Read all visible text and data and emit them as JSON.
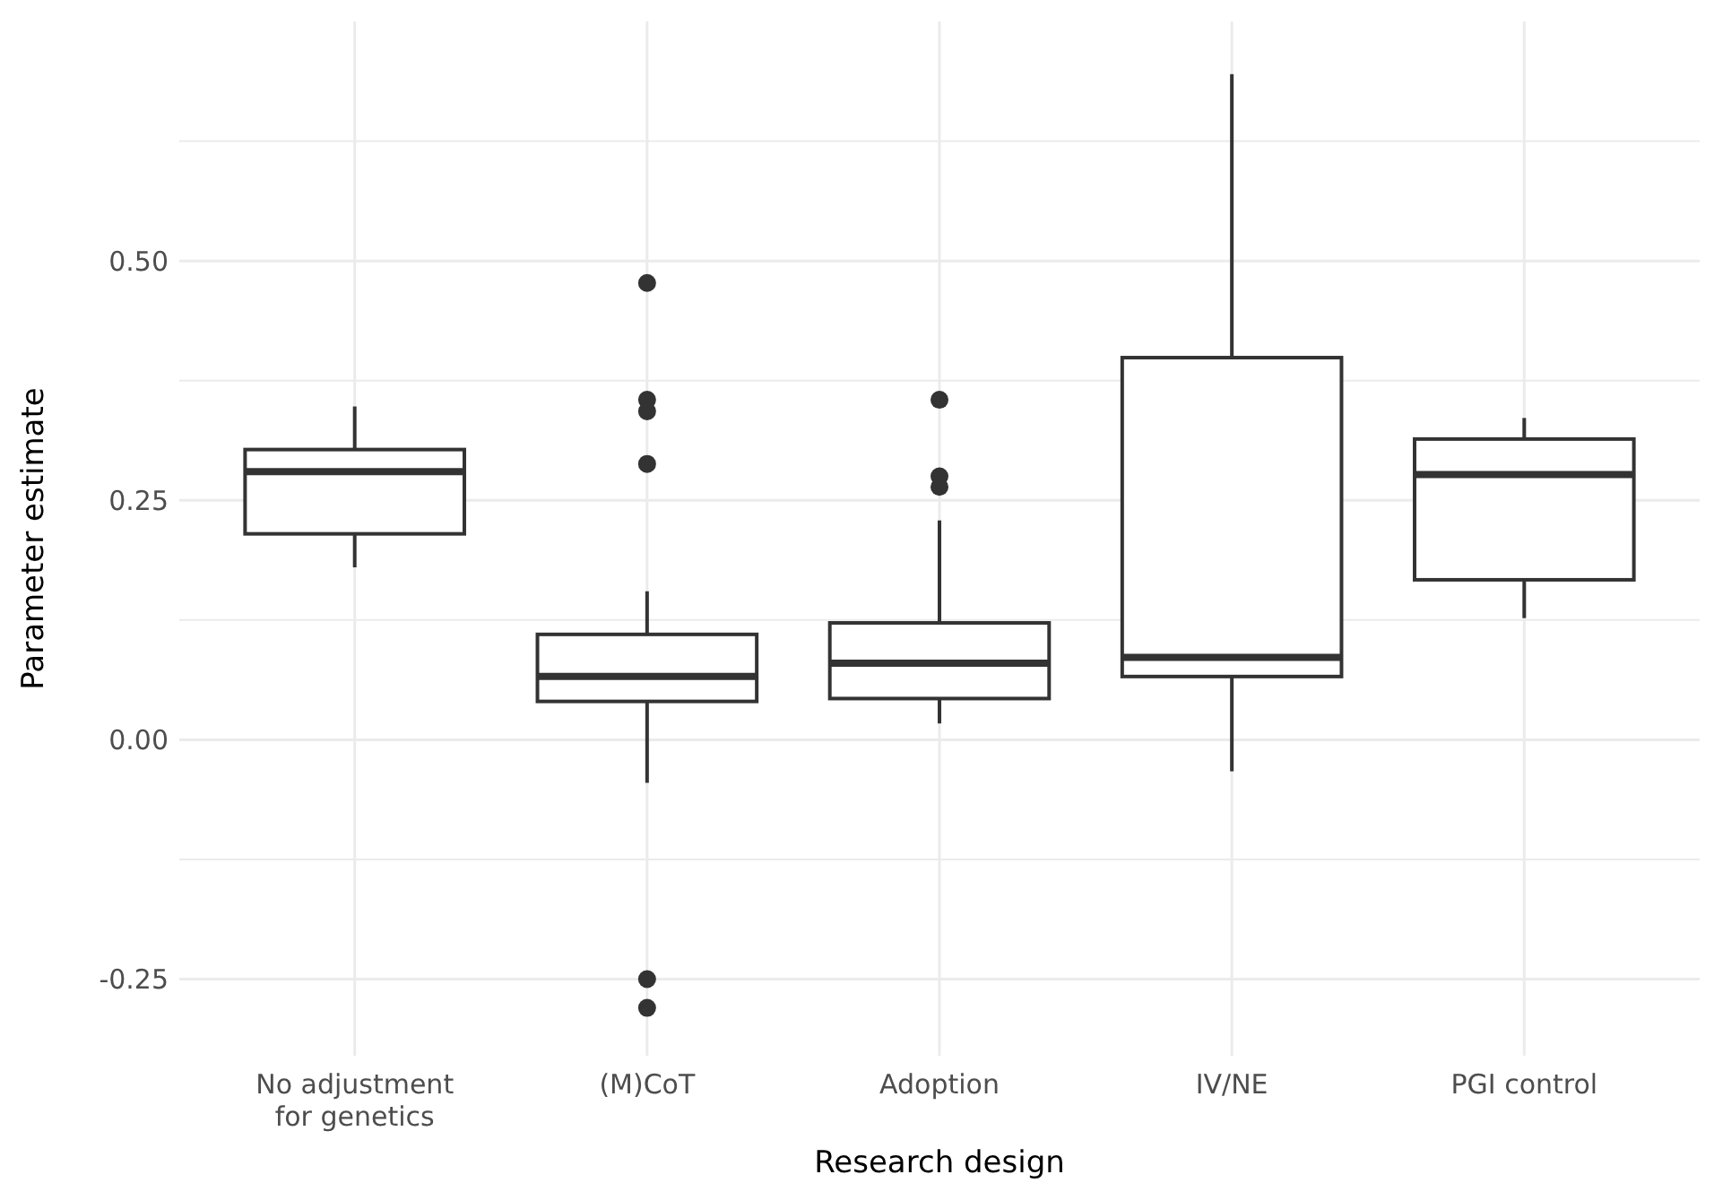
{
  "chart_data": {
    "type": "box",
    "xlabel": "Research design",
    "ylabel": "Parameter estimate",
    "categories": [
      "No adjustment\nfor genetics",
      "(M)CoT",
      "Adoption",
      "IV/NE",
      "PGI control"
    ],
    "boxes": [
      {
        "low": 0.18,
        "q1": 0.215,
        "median": 0.28,
        "q3": 0.303,
        "high": 0.348
      },
      {
        "low": -0.045,
        "q1": 0.04,
        "median": 0.066,
        "q3": 0.11,
        "high": 0.155,
        "outliers": [
          0.477,
          0.355,
          0.343,
          0.288,
          -0.25,
          -0.28
        ]
      },
      {
        "low": 0.017,
        "q1": 0.043,
        "median": 0.08,
        "q3": 0.122,
        "high": 0.229,
        "outliers": [
          0.355,
          0.275,
          0.264
        ]
      },
      {
        "low": -0.033,
        "q1": 0.066,
        "median": 0.086,
        "q3": 0.399,
        "high": 0.695
      },
      {
        "low": 0.127,
        "q1": 0.167,
        "median": 0.277,
        "q3": 0.314,
        "high": 0.336
      }
    ],
    "color": "#333333",
    "ylim": [
      -0.33,
      0.75
    ],
    "yticks": [
      {
        "value": -0.25,
        "label": "-0.25"
      },
      {
        "value": -0.125,
        "label": null
      },
      {
        "value": 0,
        "label": "0.00"
      },
      {
        "value": 0.125,
        "label": null
      },
      {
        "value": 0.25,
        "label": "0.25"
      },
      {
        "value": 0.375,
        "label": null
      },
      {
        "value": 0.5,
        "label": "0.50"
      },
      {
        "value": 0.625,
        "label": null
      }
    ],
    "grid": true
  }
}
